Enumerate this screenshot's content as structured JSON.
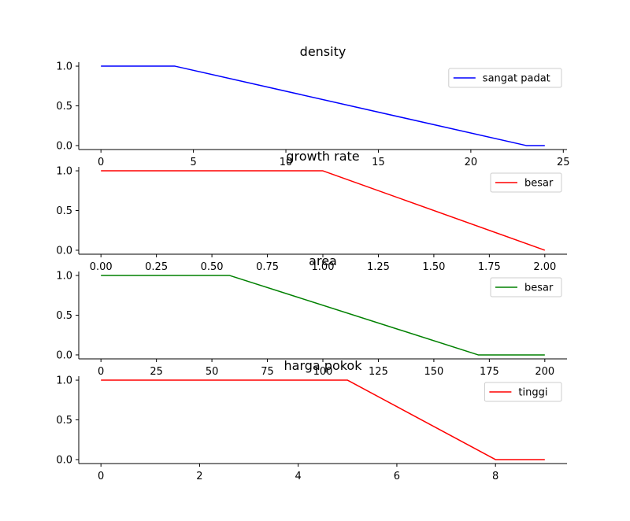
{
  "chart_data": [
    {
      "type": "line",
      "title": "density",
      "xlim": [
        -1.2,
        25.2
      ],
      "ylim": [
        -0.05,
        1.05
      ],
      "xticks": [
        0,
        5,
        10,
        15,
        20,
        25
      ],
      "xtick_labels": [
        "0",
        "5",
        "10",
        "15",
        "20",
        "25"
      ],
      "yticks": [
        0.0,
        0.5,
        1.0
      ],
      "ytick_labels": [
        "0.0",
        "0.5",
        "1.0"
      ],
      "legend_position": "upper right",
      "series": [
        {
          "name": "sangat padat",
          "color": "#0000ff",
          "x": [
            0,
            4,
            23,
            24
          ],
          "y": [
            1,
            1,
            0,
            0
          ]
        }
      ]
    },
    {
      "type": "line",
      "title": "growth rate",
      "xlim": [
        -0.1,
        2.1
      ],
      "ylim": [
        -0.05,
        1.05
      ],
      "xticks": [
        0,
        0.25,
        0.5,
        0.75,
        1.0,
        1.25,
        1.5,
        1.75,
        2.0
      ],
      "xtick_labels": [
        "0.00",
        "0.25",
        "0.50",
        "0.75",
        "1.00",
        "1.25",
        "1.50",
        "1.75",
        "2.00"
      ],
      "yticks": [
        0.0,
        0.5,
        1.0
      ],
      "ytick_labels": [
        "0.0",
        "0.5",
        "1.0"
      ],
      "legend_position": "upper right",
      "series": [
        {
          "name": "besar",
          "color": "#ff0000",
          "x": [
            0,
            1.0,
            2.0
          ],
          "y": [
            1,
            1,
            0
          ]
        }
      ]
    },
    {
      "type": "line",
      "title": "area",
      "xlim": [
        -10,
        210
      ],
      "ylim": [
        -0.05,
        1.05
      ],
      "xticks": [
        0,
        25,
        50,
        75,
        100,
        125,
        150,
        175,
        200
      ],
      "xtick_labels": [
        "0",
        "25",
        "50",
        "75",
        "100",
        "125",
        "150",
        "175",
        "200"
      ],
      "yticks": [
        0.0,
        0.5,
        1.0
      ],
      "ytick_labels": [
        "0.0",
        "0.5",
        "1.0"
      ],
      "legend_position": "upper right",
      "series": [
        {
          "name": "besar",
          "color": "#008000",
          "x": [
            0,
            58,
            170,
            200
          ],
          "y": [
            1,
            1,
            0,
            0
          ]
        }
      ]
    },
    {
      "type": "line",
      "title": "harga pokok",
      "xlim": [
        -0.45,
        9.45
      ],
      "ylim": [
        -0.05,
        1.05
      ],
      "xticks": [
        0,
        2,
        4,
        6,
        8
      ],
      "xtick_labels": [
        "0",
        "2",
        "4",
        "6",
        "8"
      ],
      "yticks": [
        0.0,
        0.5,
        1.0
      ],
      "ytick_labels": [
        "0.0",
        "0.5",
        "1.0"
      ],
      "legend_position": "upper right",
      "series": [
        {
          "name": "tinggi",
          "color": "#ff0000",
          "x": [
            0,
            5,
            8,
            9
          ],
          "y": [
            1,
            1,
            0,
            0
          ]
        }
      ]
    }
  ]
}
